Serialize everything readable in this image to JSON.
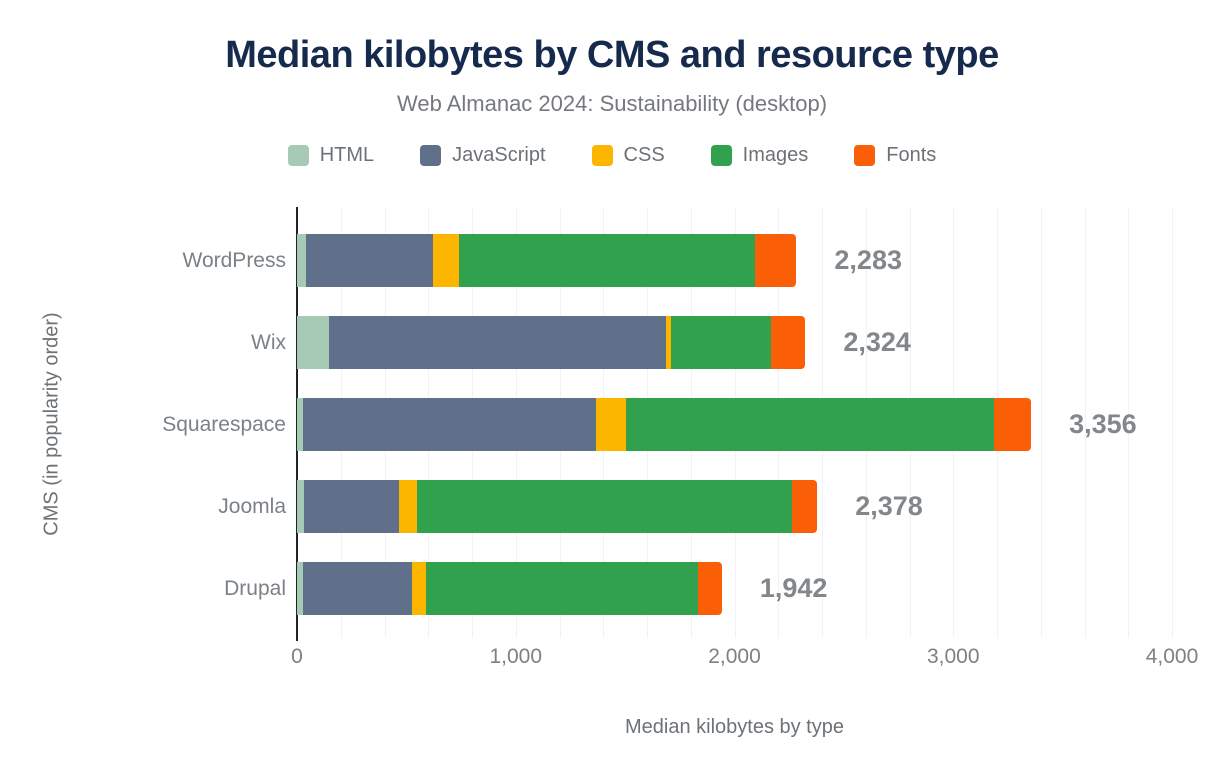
{
  "chart": {
    "title": "Median kilobytes by CMS and resource type",
    "subtitle": "Web Almanac 2024: Sustainability (desktop)",
    "xlabel": "Median kilobytes by type",
    "ylabel": "CMS (in popularity order)"
  },
  "chart_data": {
    "type": "bar",
    "orientation": "horizontal-stacked",
    "title": "Median kilobytes by CMS and resource type",
    "subtitle": "Web Almanac 2024: Sustainability (desktop)",
    "xlabel": "Median kilobytes by type",
    "ylabel": "CMS (in popularity order)",
    "categories": [
      "WordPress",
      "Wix",
      "Squarespace",
      "Joomla",
      "Drupal"
    ],
    "series": [
      {
        "name": "HTML",
        "color": "#a6cab3",
        "values": [
          41,
          146,
          27,
          30,
          27
        ]
      },
      {
        "name": "JavaScript",
        "color": "#60708a",
        "values": [
          580,
          1540,
          1340,
          435,
          498
        ]
      },
      {
        "name": "CSS",
        "color": "#fdb600",
        "values": [
          119,
          23,
          135,
          85,
          64
        ]
      },
      {
        "name": "Images",
        "color": "#31a14e",
        "values": [
          1355,
          457,
          1685,
          1713,
          1243
        ]
      },
      {
        "name": "Fonts",
        "color": "#fa5e07",
        "values": [
          188,
          158,
          169,
          115,
          110
        ]
      }
    ],
    "totals": [
      2283,
      2324,
      3356,
      2378,
      1942
    ],
    "total_labels": [
      "2,283",
      "2,324",
      "3,356",
      "2,378",
      "1,942"
    ],
    "x_ticks": [
      "0",
      "1,000",
      "2,000",
      "3,000",
      "4,000"
    ],
    "x_tick_values": [
      0,
      1000,
      2000,
      3000,
      4000
    ],
    "xlim": [
      0,
      4000
    ],
    "grid_interval": 200,
    "grid_on": true,
    "legend_position": "top-center"
  }
}
